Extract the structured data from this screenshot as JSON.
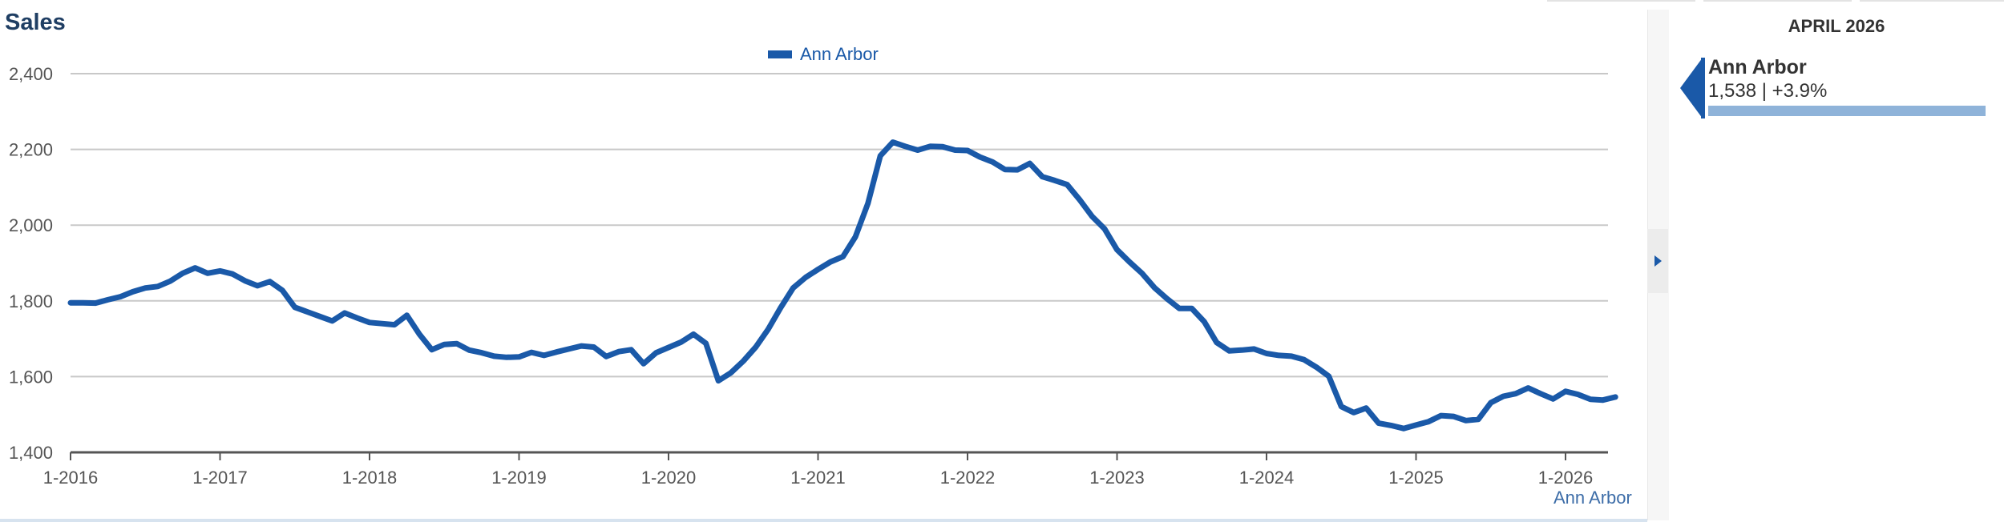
{
  "chart_title": "Sales",
  "legend": {
    "label": "Ann Arbor",
    "color": "#1a59a8"
  },
  "footer_label": "Ann Arbor",
  "side_panel": {
    "period": "APRIL 2026",
    "name": "Ann Arbor",
    "value_text": "1,538 | +3.9%"
  },
  "chart_data": {
    "type": "line",
    "title": "Sales",
    "xlabel": "",
    "ylabel": "",
    "ylim": [
      1400,
      2400
    ],
    "yticks": [
      1400,
      1600,
      1800,
      2000,
      2200,
      2400
    ],
    "ytick_labels": [
      "1,400",
      "1,600",
      "1,800",
      "2,000",
      "2,200",
      "2,400"
    ],
    "xticks": [
      "1-2016",
      "1-2017",
      "1-2018",
      "1-2019",
      "1-2020",
      "1-2021",
      "1-2022",
      "1-2023",
      "1-2024",
      "1-2025",
      "1-2026"
    ],
    "x_start": "1-2016",
    "x_end": "4-2026",
    "grid": true,
    "legend_position": "top-center",
    "series": [
      {
        "name": "Ann Arbor",
        "color": "#1a59a8",
        "values": [
          1795,
          1795,
          1794,
          1803,
          1811,
          1824,
          1834,
          1838,
          1852,
          1873,
          1887,
          1873,
          1879,
          1871,
          1853,
          1840,
          1851,
          1828,
          1783,
          1771,
          1759,
          1747,
          1768,
          1755,
          1743,
          1740,
          1737,
          1762,
          1712,
          1671,
          1685,
          1687,
          1670,
          1663,
          1654,
          1651,
          1652,
          1664,
          1656,
          1665,
          1673,
          1681,
          1678,
          1653,
          1666,
          1671,
          1634,
          1663,
          1677,
          1691,
          1712,
          1688,
          1589,
          1610,
          1641,
          1678,
          1725,
          1782,
          1834,
          1862,
          1883,
          1903,
          1917,
          1969,
          2057,
          2183,
          2219,
          2208,
          2198,
          2208,
          2207,
          2198,
          2197,
          2180,
          2167,
          2147,
          2146,
          2163,
          2128,
          2118,
          2107,
          2067,
          2023,
          1990,
          1935,
          1903,
          1873,
          1835,
          1806,
          1780,
          1780,
          1745,
          1690,
          1668,
          1670,
          1673,
          1661,
          1656,
          1654,
          1645,
          1625,
          1601,
          1521,
          1505,
          1517,
          1477,
          1471,
          1463,
          1472,
          1481,
          1497,
          1495,
          1484,
          1487,
          1531,
          1548,
          1555,
          1570,
          1555,
          1541,
          1561,
          1553,
          1540,
          1538,
          1546
        ]
      }
    ]
  }
}
